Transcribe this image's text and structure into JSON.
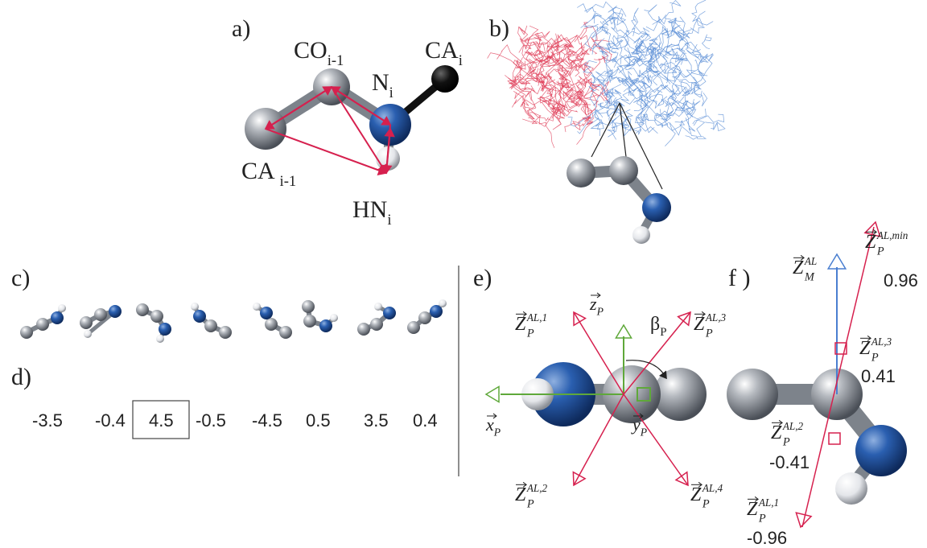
{
  "panel_labels": [
    "a)",
    "b)",
    "c)",
    "d)",
    "e)",
    "f )"
  ],
  "a_atoms": {
    "co": {
      "base": "CO",
      "sub": "i-1"
    },
    "n": {
      "base": "N",
      "sub": "i"
    },
    "ca": {
      "base": "CA",
      "sub": "i"
    },
    "ca_prev": {
      "base": "CA ",
      "sub": "i-1"
    },
    "hn": {
      "base": "HN",
      "sub": "i"
    }
  },
  "d_values": [
    -3.5,
    -0.4,
    4.5,
    -0.5,
    -4.5,
    0.5,
    3.5,
    0.4
  ],
  "e_labels": {
    "z": {
      "base": "z",
      "sub": "P"
    },
    "beta": {
      "base": "β",
      "sub": "P"
    },
    "x": {
      "base": "x",
      "sub": "P"
    },
    "y": {
      "base": "y",
      "sub": "P"
    },
    "z1": {
      "base": "Z",
      "sub": "P",
      "sup": "AL,1"
    },
    "z2": {
      "base": "Z",
      "sub": "P",
      "sup": "AL,2"
    },
    "z3": {
      "base": "Z",
      "sub": "P",
      "sup": "AL,3"
    },
    "z4": {
      "base": "Z",
      "sub": "P",
      "sup": "AL,4"
    }
  },
  "f_labels": {
    "zm": {
      "base": "Z",
      "sub": "M",
      "sup": "AL"
    },
    "zmin": {
      "base": "Z",
      "sub": "P",
      "sup": "AL,min"
    },
    "z3": {
      "base": "Z",
      "sub": "P",
      "sup": "AL,3"
    },
    "z2": {
      "base": "Z",
      "sub": "P",
      "sup": "AL,2"
    },
    "z1": {
      "base": "Z",
      "sub": "P",
      "sup": "AL,1"
    }
  },
  "f_values": {
    "min": 0.96,
    "z3": 0.41,
    "z2": -0.41,
    "z1": -0.96
  }
}
